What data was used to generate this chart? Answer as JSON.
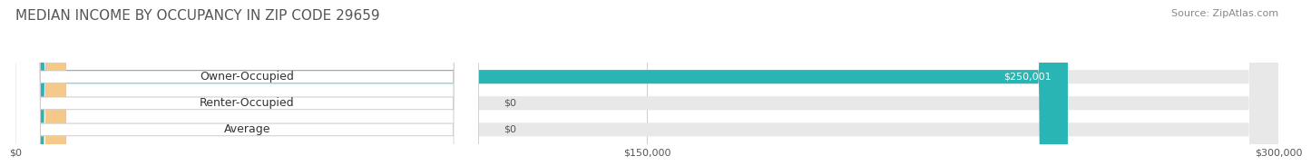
{
  "title": "MEDIAN INCOME BY OCCUPANCY IN ZIP CODE 29659",
  "source": "Source: ZipAtlas.com",
  "categories": [
    "Owner-Occupied",
    "Renter-Occupied",
    "Average"
  ],
  "values": [
    250001,
    0,
    0
  ],
  "bar_colors": [
    "#2ab5b5",
    "#b59fd4",
    "#f5c98a"
  ],
  "bar_bg_color": "#e8e8e8",
  "xlim": [
    0,
    300000
  ],
  "xticks": [
    0,
    150000,
    300000
  ],
  "xtick_labels": [
    "$0",
    "$150,000",
    "$300,000"
  ],
  "value_labels": [
    "$250,001",
    "$0",
    "$0"
  ],
  "title_fontsize": 11,
  "source_fontsize": 8,
  "tick_fontsize": 8,
  "bar_label_fontsize": 9,
  "value_label_fontsize": 8,
  "bar_height": 0.52,
  "background_color": "#ffffff",
  "grid_color": "#d0d0d0"
}
